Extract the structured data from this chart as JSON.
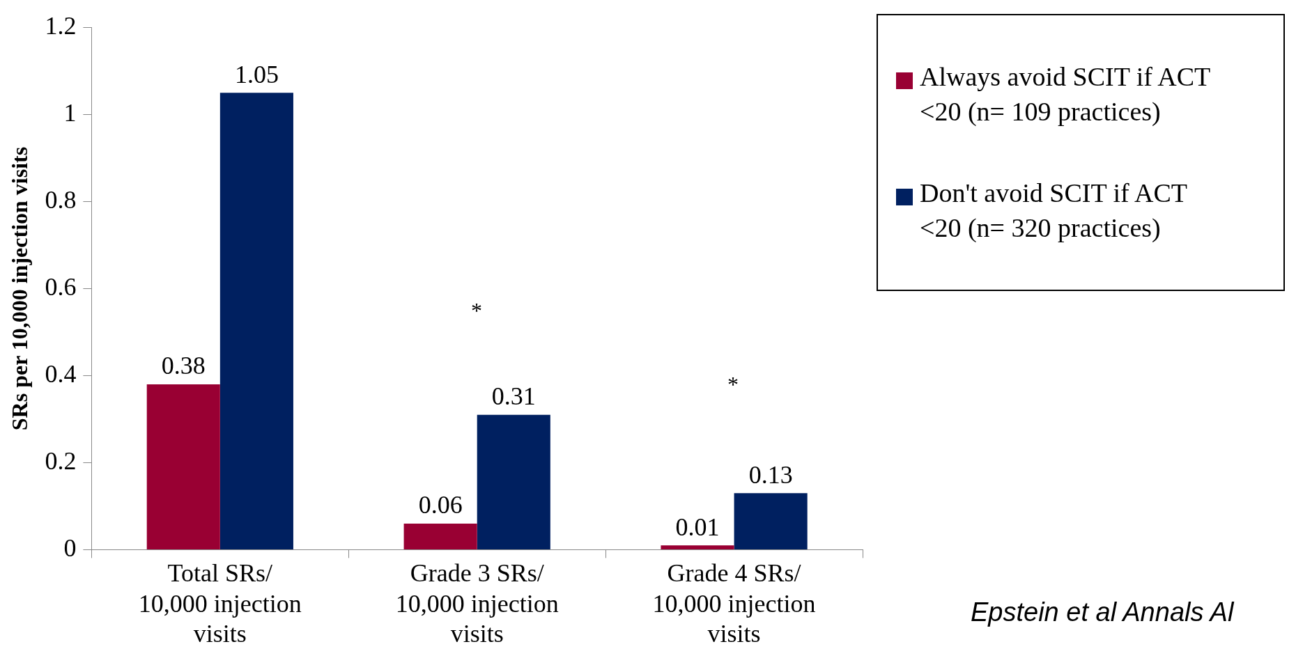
{
  "chart_data": {
    "type": "bar",
    "ylabel": "SRs per 10,000 injection visits",
    "categories": [
      "Total SRs/ 10,000 injection visits",
      "Grade 3 SRs/ 10,000 injection visits",
      "Grade 4 SRs/ 10,000 injection visits"
    ],
    "series": [
      {
        "name": "Always avoid SCIT if ACT <20 (n= 109 practices)",
        "color": "#990033",
        "values": [
          0.38,
          0.06,
          0.01
        ]
      },
      {
        "name": "Don't avoid SCIT if ACT <20 (n= 320 practices)",
        "color": "#002060",
        "values": [
          1.05,
          0.31,
          0.13
        ]
      }
    ],
    "ylim": [
      0,
      1.2
    ],
    "yticks": [
      0,
      0.2,
      0.4,
      0.6,
      0.8,
      1,
      1.2
    ],
    "grid": false,
    "legend": "right",
    "data_labels": true,
    "annotations": [
      "*",
      "*",
      "Epstein et al Annals Al"
    ]
  }
}
